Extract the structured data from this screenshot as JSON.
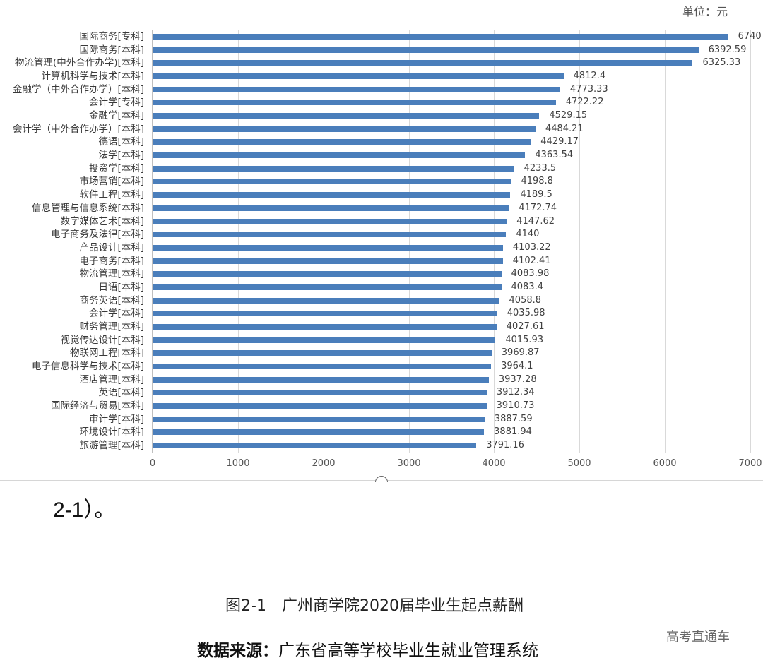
{
  "unit_label": "单位：元",
  "chart_data": {
    "type": "bar",
    "orientation": "horizontal",
    "title": "图2-1　广州商学院2020届毕业生起点薪酬",
    "xlabel": "",
    "ylabel": "",
    "unit": "元",
    "xlim": [
      0,
      7000
    ],
    "xticks": [
      0,
      1000,
      2000,
      3000,
      4000,
      5000,
      6000,
      7000
    ],
    "grid": true,
    "legend": null,
    "bar_color": "#4a7ebb",
    "categories": [
      "国际商务[专科]",
      "国际商务[本科]",
      "物流管理(中外合作办学)[本科]",
      "计算机科学与技术[本科]",
      "金融学（中外合作办学）[本科]",
      "会计学[专科]",
      "金融学[本科]",
      "会计学（中外合作办学）[本科]",
      "德语[本科]",
      "法学[本科]",
      "投资学[本科]",
      "市场营销[本科]",
      "软件工程[本科]",
      "信息管理与信息系统[本科]",
      "数字媒体艺术[本科]",
      "电子商务及法律[本科]",
      "产品设计[本科]",
      "电子商务[本科]",
      "物流管理[本科]",
      "日语[本科]",
      "商务英语[本科]",
      "会计学[本科]",
      "财务管理[本科]",
      "视觉传达设计[本科]",
      "物联网工程[本科]",
      "电子信息科学与技术[本科]",
      "酒店管理[本科]",
      "英语[本科]",
      "国际经济与贸易[本科]",
      "审计学[本科]",
      "环境设计[本科]",
      "旅游管理[本科]"
    ],
    "values": [
      6740,
      6392.59,
      6325.33,
      4812.4,
      4773.33,
      4722.22,
      4529.15,
      4484.21,
      4429.17,
      4363.54,
      4233.5,
      4198.8,
      4189.5,
      4172.74,
      4147.62,
      4140,
      4103.22,
      4102.41,
      4083.98,
      4083.4,
      4058.8,
      4035.98,
      4027.61,
      4015.93,
      3969.87,
      3964.1,
      3937.28,
      3912.34,
      3910.73,
      3887.59,
      3881.94,
      3791.16
    ],
    "value_labels": [
      "6740",
      "6392.59",
      "6325.33",
      "4812.4",
      "4773.33",
      "4722.22",
      "4529.15",
      "4484.21",
      "4429.17",
      "4363.54",
      "4233.5",
      "4198.8",
      "4189.5",
      "4172.74",
      "4147.62",
      "4140",
      "4103.22",
      "4102.41",
      "4083.98",
      "4083.4",
      "4058.8",
      "4035.98",
      "4027.61",
      "4015.93",
      "3969.87",
      "3964.1",
      "3937.28",
      "3912.34",
      "3910.73",
      "3887.59",
      "3881.94",
      "3791.16"
    ]
  },
  "snippet_text": "2-1）。",
  "caption": "图2-1　广州商学院2020届毕业生起点薪酬",
  "source": {
    "label": "数据来源：",
    "text": "广东省高等学校毕业生就业管理系统"
  },
  "watermark": "高考直通车"
}
